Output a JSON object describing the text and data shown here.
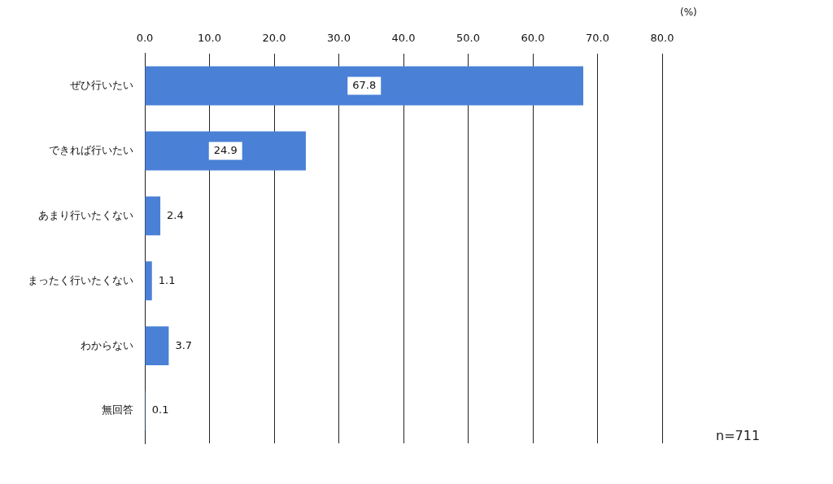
{
  "chart_data": {
    "type": "bar",
    "orientation": "horizontal",
    "categories": [
      "ぜひ行いたい",
      "できれば行いたい",
      "あまり行いたくない",
      "まったく行いたくない",
      "わからない",
      "無回答"
    ],
    "values": [
      67.8,
      24.9,
      2.4,
      1.1,
      3.7,
      0.1
    ],
    "color": "#4a80d6",
    "xlim": [
      0,
      80
    ],
    "xticks": [
      {
        "value": 0,
        "label": "0.0"
      },
      {
        "value": 10,
        "label": "10.0"
      },
      {
        "value": 20,
        "label": "20.0"
      },
      {
        "value": 30,
        "label": "30.0"
      },
      {
        "value": 40,
        "label": "40.0"
      },
      {
        "value": 50,
        "label": "50.0"
      },
      {
        "value": 60,
        "label": "60.0"
      },
      {
        "value": 70,
        "label": "70.0"
      },
      {
        "value": 80,
        "label": "80.0"
      }
    ],
    "xlabel": "(%)",
    "grid": "x",
    "data_labels": true,
    "annotations": [
      "n=711"
    ]
  }
}
